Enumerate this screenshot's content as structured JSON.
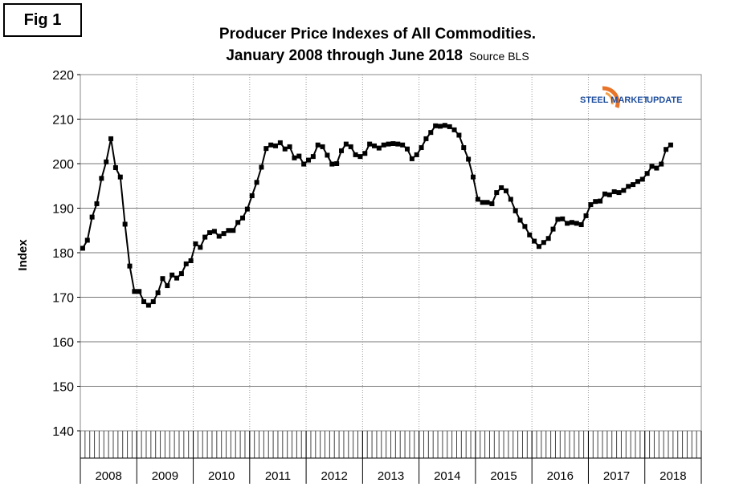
{
  "figure_label": "Fig 1",
  "chart_data": {
    "type": "line",
    "title": "Producer Price Indexes of All Commodities.",
    "subtitle": "January 2008 through June 2018",
    "source": "Source BLS",
    "ylabel": "Index",
    "xlabel": "",
    "ylim": [
      140,
      220
    ],
    "yticks": [
      140,
      150,
      160,
      170,
      180,
      190,
      200,
      210,
      220
    ],
    "year_labels": [
      "2008",
      "2009",
      "2010",
      "2011",
      "2012",
      "2013",
      "2014",
      "2015",
      "2016",
      "2017",
      "2018"
    ],
    "grid": "dotted vertical at year boundaries, horizontal at y ticks",
    "logo": {
      "word1": "STEEL MARKET",
      "word2": "UPDATE",
      "colors": [
        "#1f4e9c",
        "#e8742a"
      ]
    },
    "series": [
      {
        "values": [
          181.0,
          182.8,
          188.0,
          191.0,
          196.7,
          200.4,
          205.6,
          199.1,
          197.0,
          186.4,
          177.0,
          171.3,
          171.3,
          169.0,
          168.2,
          169.0,
          171.0,
          174.2,
          172.6,
          175.0,
          174.3,
          175.3,
          177.5,
          178.2,
          182.0,
          181.2,
          183.5,
          184.5,
          184.8,
          183.7,
          184.3,
          185.0,
          185.0,
          186.8,
          187.8,
          189.8,
          192.8,
          195.8,
          199.2,
          203.4,
          204.2,
          204.0,
          204.7,
          203.3,
          203.8,
          201.3,
          201.7,
          199.9,
          200.8,
          201.6,
          204.2,
          203.8,
          201.9,
          199.9,
          200.0,
          202.9,
          204.4,
          203.8,
          202.0,
          201.6,
          202.3,
          204.4,
          204.0,
          203.5,
          204.2,
          204.4,
          204.5,
          204.4,
          204.2,
          203.3,
          201.1,
          202.0,
          203.6,
          205.6,
          207.0,
          208.5,
          208.4,
          208.6,
          208.3,
          207.6,
          206.4,
          203.6,
          201.0,
          197.0,
          192.0,
          191.3,
          191.3,
          191.0,
          193.5,
          194.6,
          193.9,
          192.0,
          189.4,
          187.3,
          185.9,
          184.0,
          182.6,
          181.4,
          182.3,
          183.2,
          185.3,
          187.5,
          187.6,
          186.6,
          186.8,
          186.6,
          186.3,
          188.3,
          190.8,
          191.5,
          191.6,
          193.2,
          193.0,
          193.7,
          193.5,
          194.0,
          194.9,
          195.3,
          196.0,
          196.5,
          197.8,
          199.4,
          199.0,
          199.9,
          203.2,
          204.2
        ]
      }
    ]
  }
}
